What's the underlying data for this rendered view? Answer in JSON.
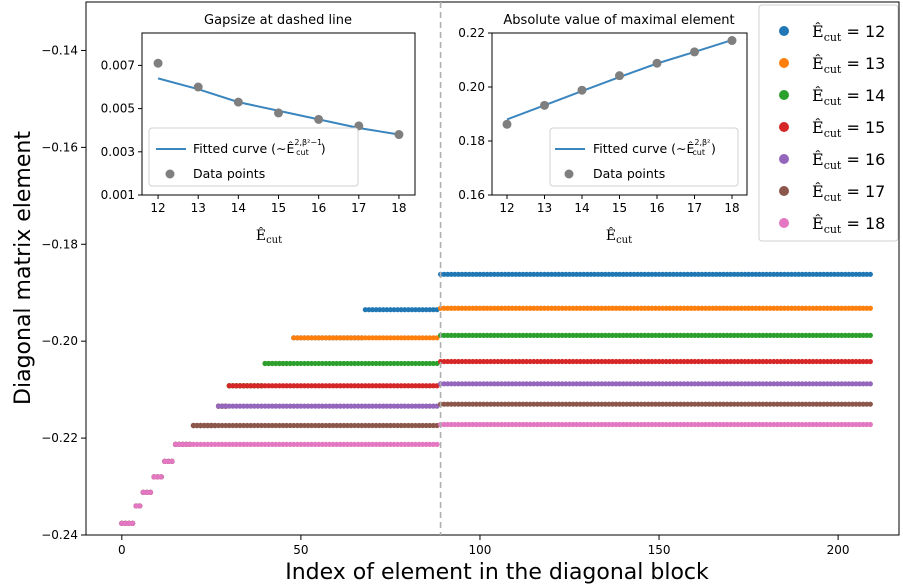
{
  "chart_data": [
    {
      "type": "scatter",
      "xlabel": "Index of element in the diagonal block",
      "ylabel": "Diagonal matrix element",
      "xlim": [
        -10,
        217
      ],
      "ylim": [
        -0.24,
        -0.13
      ],
      "xticks": [
        0,
        50,
        100,
        150,
        200
      ],
      "yticks": [
        -0.24,
        -0.22,
        -0.2,
        -0.18,
        -0.16,
        -0.14
      ],
      "ytick_labels": [
        "−0.24",
        "−0.22",
        "−0.20",
        "−0.18",
        "−0.16",
        "−0.14"
      ],
      "dashed_line_x": 89,
      "grid": false,
      "legend_position": "top-right",
      "legend_title_prefix": "Ê",
      "legend_sub": "cut",
      "series": [
        {
          "name": "12",
          "color": "#1f77b4",
          "N": 210,
          "steps": [
            [
              0,
              -0.2376
            ],
            [
              4,
              -0.234
            ],
            [
              6,
              -0.2312
            ],
            [
              9,
              -0.228
            ],
            [
              12,
              -0.2248
            ],
            [
              15,
              -0.2213
            ],
            [
              20,
              -0.2174
            ],
            [
              27,
              -0.2134
            ],
            [
              30,
              -0.2092
            ],
            [
              40,
              -0.2046
            ],
            [
              48,
              -0.1993
            ],
            [
              68,
              -0.1935
            ],
            [
              89,
              -0.1862
            ]
          ]
        },
        {
          "name": "13",
          "color": "#ff7f0e",
          "N": 210,
          "steps": [
            [
              0,
              -0.2376
            ],
            [
              4,
              -0.234
            ],
            [
              6,
              -0.2312
            ],
            [
              9,
              -0.228
            ],
            [
              12,
              -0.2248
            ],
            [
              15,
              -0.2213
            ],
            [
              20,
              -0.2174
            ],
            [
              27,
              -0.2134
            ],
            [
              30,
              -0.2092
            ],
            [
              40,
              -0.2046
            ],
            [
              48,
              -0.1993
            ],
            [
              89,
              -0.1932
            ]
          ]
        },
        {
          "name": "14",
          "color": "#2ca02c",
          "N": 210,
          "steps": [
            [
              0,
              -0.2376
            ],
            [
              4,
              -0.234
            ],
            [
              6,
              -0.2312
            ],
            [
              9,
              -0.228
            ],
            [
              12,
              -0.2248
            ],
            [
              15,
              -0.2213
            ],
            [
              20,
              -0.2174
            ],
            [
              27,
              -0.2134
            ],
            [
              30,
              -0.2092
            ],
            [
              40,
              -0.2046
            ],
            [
              89,
              -0.1988
            ]
          ]
        },
        {
          "name": "15",
          "color": "#d62728",
          "N": 210,
          "steps": [
            [
              0,
              -0.2376
            ],
            [
              4,
              -0.234
            ],
            [
              6,
              -0.2312
            ],
            [
              9,
              -0.228
            ],
            [
              12,
              -0.2248
            ],
            [
              15,
              -0.2213
            ],
            [
              20,
              -0.2174
            ],
            [
              27,
              -0.2134
            ],
            [
              30,
              -0.2092
            ],
            [
              89,
              -0.2042
            ]
          ]
        },
        {
          "name": "16",
          "color": "#9467bd",
          "N": 210,
          "steps": [
            [
              0,
              -0.2376
            ],
            [
              4,
              -0.234
            ],
            [
              6,
              -0.2312
            ],
            [
              9,
              -0.228
            ],
            [
              12,
              -0.2248
            ],
            [
              15,
              -0.2213
            ],
            [
              20,
              -0.2174
            ],
            [
              27,
              -0.2134
            ],
            [
              89,
              -0.2088
            ]
          ]
        },
        {
          "name": "17",
          "color": "#8c564b",
          "N": 210,
          "steps": [
            [
              0,
              -0.2376
            ],
            [
              4,
              -0.234
            ],
            [
              6,
              -0.2312
            ],
            [
              9,
              -0.228
            ],
            [
              12,
              -0.2248
            ],
            [
              15,
              -0.2213
            ],
            [
              20,
              -0.2174
            ],
            [
              89,
              -0.213
            ]
          ]
        },
        {
          "name": "18",
          "color": "#e377c2",
          "N": 210,
          "steps": [
            [
              0,
              -0.2376
            ],
            [
              4,
              -0.234
            ],
            [
              6,
              -0.2312
            ],
            [
              9,
              -0.228
            ],
            [
              12,
              -0.2248
            ],
            [
              15,
              -0.2213
            ],
            [
              89,
              -0.2172
            ]
          ]
        }
      ]
    },
    {
      "type": "scatter",
      "title": "Gapsize at dashed line",
      "xlabel": "Ê",
      "xlabel_sub": "cut",
      "x": [
        12,
        13,
        14,
        15,
        16,
        17,
        18
      ],
      "values": [
        0.0071,
        0.006,
        0.0053,
        0.0048,
        0.0045,
        0.0042,
        0.0038
      ],
      "fit": [
        0.0064,
        0.0059,
        0.0053,
        0.0049,
        0.0045,
        0.0041,
        0.0038
      ],
      "xlim": [
        11.6,
        18.4
      ],
      "ylim": [
        0.001,
        0.0085
      ],
      "yticks": [
        0.001,
        0.003,
        0.005,
        0.007
      ],
      "ytick_labels": [
        "0.001",
        "0.003",
        "0.005",
        "0.007"
      ],
      "legend_position": "lower-left",
      "legend": {
        "fit": "Fitted curve (∼Ê",
        "fit_sup": "2,β²−1",
        "fit_sup_lead": "cut",
        "fit_close": ")",
        "points": "Data points"
      }
    },
    {
      "type": "scatter",
      "title": "Absolute value of maximal element",
      "xlabel": "Ê",
      "xlabel_sub": "cut",
      "x": [
        12,
        13,
        14,
        15,
        16,
        17,
        18
      ],
      "values": [
        0.1862,
        0.1932,
        0.1988,
        0.2042,
        0.2088,
        0.213,
        0.2172
      ],
      "fit": [
        0.188,
        0.1932,
        0.1985,
        0.2037,
        0.2087,
        0.213,
        0.2174
      ],
      "xlim": [
        11.6,
        18.4
      ],
      "ylim": [
        0.16,
        0.22
      ],
      "yticks": [
        0.16,
        0.18,
        0.2,
        0.22
      ],
      "ytick_labels": [
        "0.16",
        "0.18",
        "0.20",
        "0.22"
      ],
      "legend_position": "lower-right",
      "legend": {
        "fit": "Fitted curve (∼Ê",
        "fit_sup": "2,β²",
        "fit_sup_lead": "cut",
        "fit_close": ")",
        "points": "Data points"
      }
    }
  ]
}
